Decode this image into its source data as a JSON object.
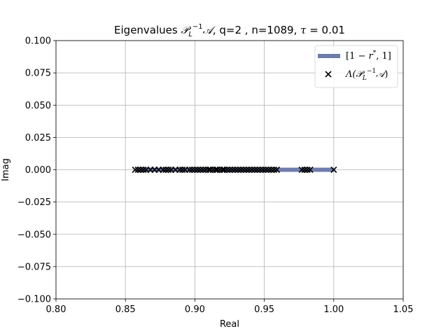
{
  "chart_data": {
    "type": "scatter",
    "title": "Eigenvalues 𝒫_L⁻¹𝒜, q=2 , n=1089, τ = 0.01",
    "title_parts": {
      "prefix": "Eigenvalues ",
      "script_p": "𝒫",
      "sub_l": "L",
      "sup_minus_one": "−1",
      "script_a": "𝒜",
      "middle": ", q=2 , n=1089, ",
      "tau": "τ",
      "tau_value": " = 0.01"
    },
    "xlabel": "Real",
    "ylabel": "Imag",
    "xlim": [
      0.8,
      1.05
    ],
    "ylim": [
      -0.1,
      0.1
    ],
    "xticks": [
      0.8,
      0.85,
      0.9,
      0.95,
      1.0,
      1.05
    ],
    "xtick_labels": [
      "0.80",
      "0.85",
      "0.90",
      "0.95",
      "1.00",
      "1.05"
    ],
    "yticks": [
      0.1,
      0.075,
      0.05,
      0.025,
      0.0,
      -0.025,
      -0.05,
      -0.075,
      -0.1
    ],
    "ytick_labels": [
      "0.100",
      "0.075",
      "0.050",
      "0.025",
      "0.000",
      "−0.025",
      "−0.050",
      "−0.075",
      "−0.100"
    ],
    "grid": true,
    "legend_position": "top-right",
    "interval": {
      "label": "[1 − r*, 1]",
      "label_parts": {
        "open": "[1 − ",
        "r": "r",
        "star": "*",
        "close": ", 1]"
      },
      "x_start": 0.858,
      "x_end": 1.0,
      "y": 0.0,
      "color": "#6e7bab"
    },
    "eigenvalues": {
      "label": "Λ(𝒫_L⁻¹𝒜)",
      "label_parts": {
        "lambda": "Λ(",
        "script_p": "𝒫",
        "sub_l": "L",
        "sup_minus_one": "−1",
        "script_a": "𝒜",
        "close": ")"
      },
      "marker": "x",
      "color": "#000000",
      "imag": 0.0,
      "real": [
        0.857,
        0.859,
        0.861,
        0.863,
        0.865,
        0.868,
        0.871,
        0.874,
        0.877,
        0.879,
        0.881,
        0.883,
        0.886,
        0.889,
        0.891,
        0.893,
        0.896,
        0.898,
        0.9,
        0.902,
        0.904,
        0.906,
        0.908,
        0.91,
        0.911,
        0.913,
        0.915,
        0.916,
        0.918,
        0.92,
        0.921,
        0.923,
        0.925,
        0.927,
        0.929,
        0.931,
        0.933,
        0.935,
        0.937,
        0.939,
        0.941,
        0.943,
        0.945,
        0.947,
        0.949,
        0.951,
        0.953,
        0.955,
        0.957,
        0.959,
        0.977,
        0.979,
        0.981,
        0.983,
        1.0
      ]
    }
  }
}
